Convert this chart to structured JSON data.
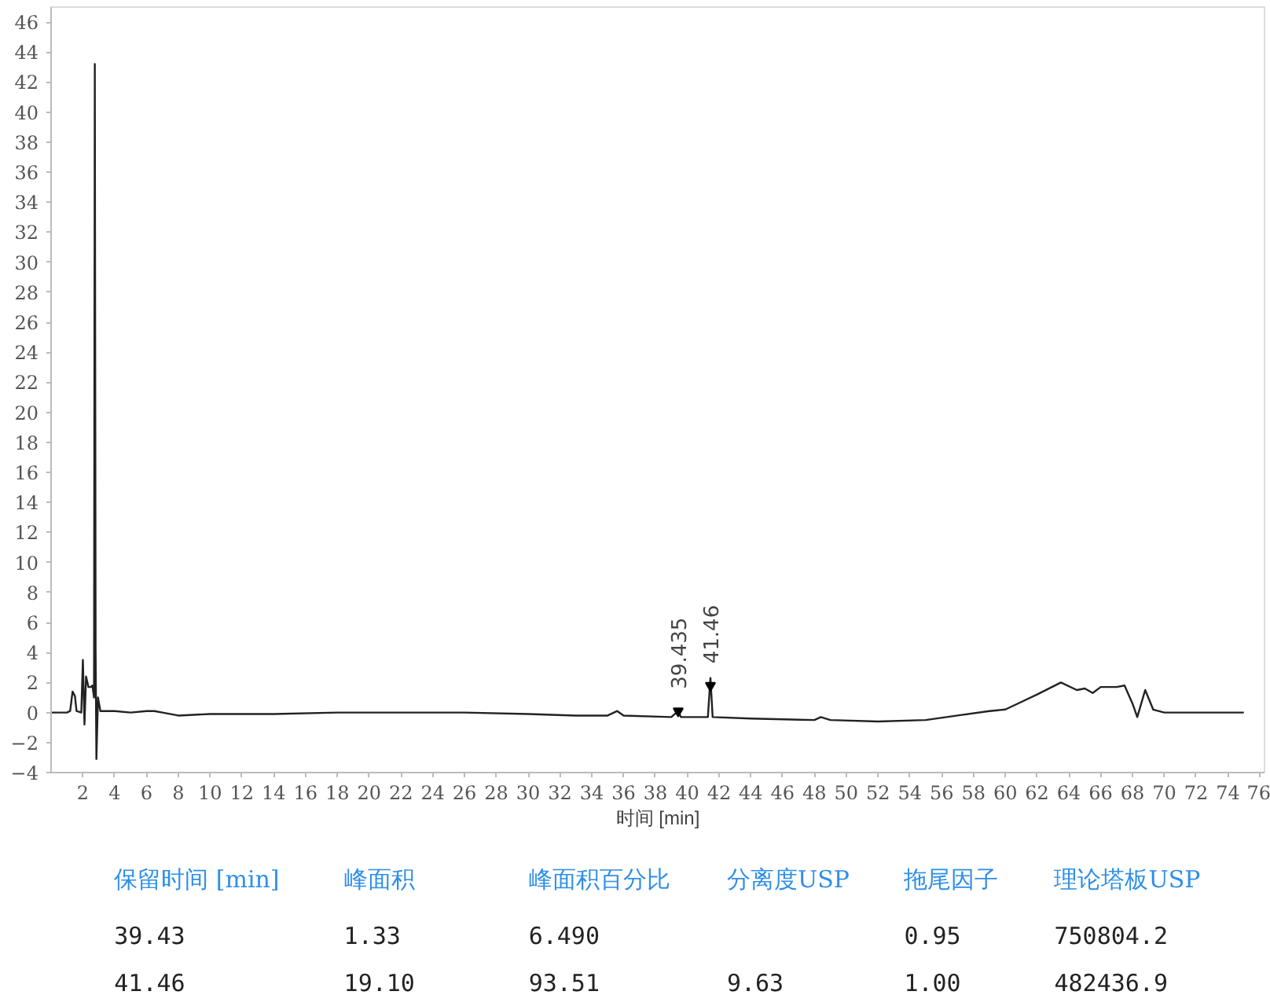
{
  "chart_data": {
    "type": "line",
    "xlabel": "时间 [min]",
    "x": [
      0,
      1,
      1.2,
      1.35,
      1.5,
      1.6,
      1.9,
      2.0,
      2.1,
      2.2,
      2.35,
      2.5,
      2.6,
      2.7,
      2.75,
      2.8,
      2.85,
      2.95,
      3.1,
      4,
      5,
      6,
      6.5,
      7,
      8,
      10,
      14,
      18,
      22,
      26,
      30,
      33,
      35,
      35.6,
      36,
      39,
      39.435,
      39.6,
      41.3,
      41.46,
      41.6,
      44,
      48,
      48.4,
      49,
      52,
      55,
      57,
      59,
      60,
      61,
      62,
      63.5,
      64.5,
      65,
      65.5,
      66,
      67,
      67.5,
      68,
      68.3,
      68.8,
      69.3,
      70,
      75
    ],
    "series": [
      {
        "color": "#222222",
        "values": [
          0,
          0,
          0.1,
          1.4,
          1.1,
          0.1,
          0,
          3.5,
          -0.8,
          2.4,
          1.7,
          1.7,
          1.8,
          1.0,
          43.2,
          4.1,
          -3.1,
          1.0,
          0.1,
          0.1,
          0,
          0.1,
          0.1,
          0,
          -0.2,
          -0.1,
          -0.1,
          0,
          0,
          0,
          -0.1,
          -0.2,
          -0.2,
          0.1,
          -0.2,
          -0.3,
          0.1,
          -0.3,
          -0.3,
          2.3,
          -0.3,
          -0.4,
          -0.5,
          -0.3,
          -0.5,
          -0.6,
          -0.5,
          -0.2,
          0.1,
          0.2,
          0.7,
          1.2,
          2.0,
          1.5,
          1.6,
          1.3,
          1.7,
          1.7,
          1.8,
          0.6,
          -0.3,
          1.5,
          0.2,
          0,
          0
        ]
      }
    ],
    "xlim": [
      0,
      76.3
    ],
    "ylim": [
      -4,
      47
    ],
    "xticks": [
      2,
      4,
      6,
      8,
      10,
      12,
      14,
      16,
      18,
      20,
      22,
      24,
      26,
      28,
      30,
      32,
      34,
      36,
      38,
      40,
      42,
      44,
      46,
      48,
      50,
      52,
      54,
      56,
      58,
      60,
      62,
      64,
      66,
      68,
      70,
      72,
      74,
      76
    ],
    "yticks": [
      -4,
      -2,
      0,
      2,
      4,
      6,
      8,
      10,
      12,
      14,
      16,
      18,
      20,
      22,
      24,
      26,
      28,
      30,
      32,
      34,
      36,
      38,
      40,
      42,
      44,
      46
    ],
    "grid": false,
    "marker": "none",
    "line_style": "solid",
    "annotations": [
      {
        "text": "39.435",
        "x": 39.435,
        "y": 0.1
      },
      {
        "text": "41.46",
        "x": 41.46,
        "y": 1.8
      },
      "保留时间 [min]\t峰面积\t峰面积百分比\t分离度USP\t拖尾因子\t理论塔板USP",
      "39.43\t1.33\t6.490\t\t0.95\t750804.2",
      "41.46\t19.10\t93.51\t9.63\t1.00\t482436.9"
    ]
  }
}
